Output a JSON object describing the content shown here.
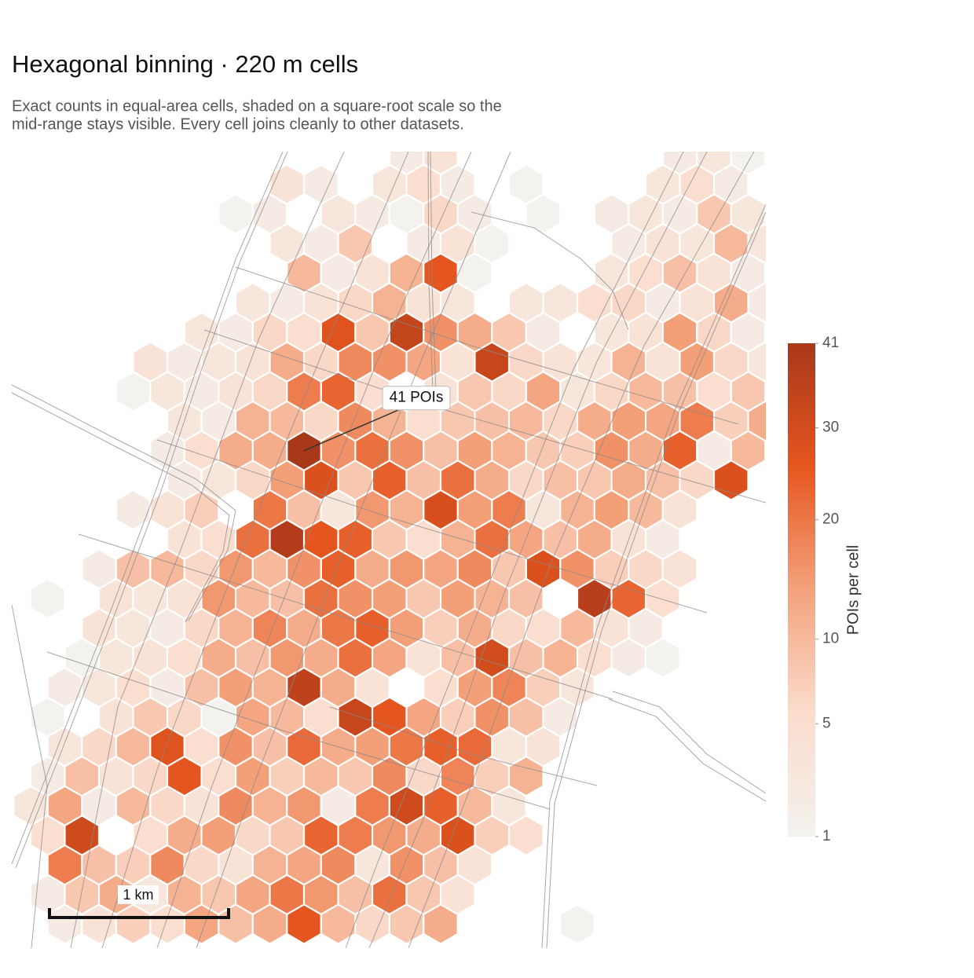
{
  "chart_data": {
    "type": "hexbin",
    "title": "Hexagonal binning · 220 m cells",
    "subtitle_lines": [
      "Exact counts in equal-area cells, shaded on a square-root scale so the",
      "mid-range stays visible. Every cell joins cleanly to other datasets."
    ],
    "annotation": {
      "text": "41 POIs",
      "row": 10,
      "col": 8
    },
    "scale_bar": "1 km",
    "colorscale": [
      "#f3f2ee",
      "#fbdccd",
      "#f3a27c",
      "#e6561f",
      "#a8381a"
    ],
    "colorbar": {
      "label": "POIs per cell",
      "scale": "sqrt",
      "range": [
        1,
        41
      ],
      "ticks": [
        1,
        5,
        10,
        20,
        30,
        41
      ]
    },
    "grid": [
      [
        null,
        null,
        null,
        null,
        null,
        null,
        null,
        null,
        null,
        null,
        null,
        2,
        4,
        null,
        null,
        null,
        null,
        null,
        null,
        2,
        3,
        1
      ],
      [
        null,
        null,
        null,
        null,
        null,
        null,
        null,
        4,
        2,
        null,
        3,
        5,
        2,
        null,
        1,
        null,
        null,
        null,
        3,
        5,
        2,
        null
      ],
      [
        null,
        null,
        null,
        null,
        null,
        null,
        1,
        2,
        null,
        3,
        2,
        1,
        6,
        2,
        null,
        1,
        null,
        2,
        3,
        2,
        8,
        3
      ],
      [
        null,
        null,
        null,
        null,
        null,
        null,
        null,
        3,
        2,
        8,
        null,
        2,
        4,
        1,
        null,
        null,
        null,
        2,
        4,
        3,
        10,
        3
      ],
      [
        null,
        null,
        null,
        null,
        null,
        null,
        null,
        null,
        10,
        2,
        4,
        11,
        26,
        1,
        null,
        null,
        null,
        3,
        5,
        9,
        4,
        2
      ],
      [
        null,
        null,
        null,
        null,
        null,
        null,
        3,
        2,
        4,
        6,
        11,
        4,
        3,
        null,
        3,
        3,
        5,
        6,
        2,
        4,
        12,
        2
      ],
      [
        null,
        null,
        null,
        null,
        null,
        3,
        2,
        6,
        5,
        27,
        8,
        34,
        16,
        12,
        8,
        2,
        null,
        3,
        4,
        14,
        6,
        2
      ],
      [
        null,
        null,
        null,
        4,
        2,
        3,
        4,
        12,
        6,
        17,
        16,
        13,
        4,
        33,
        6,
        4,
        3,
        11,
        4,
        14,
        6,
        3
      ],
      [
        null,
        null,
        null,
        1,
        3,
        2,
        4,
        6,
        19,
        23,
        5,
        null,
        4,
        8,
        6,
        13,
        3,
        6,
        10,
        9,
        5,
        8
      ],
      [
        null,
        null,
        null,
        null,
        3,
        2,
        11,
        10,
        6,
        17,
        11,
        5,
        8,
        9,
        10,
        6,
        12,
        14,
        13,
        19,
        7,
        12
      ],
      [
        null,
        null,
        null,
        null,
        2,
        5,
        12,
        12,
        41,
        16,
        21,
        16,
        9,
        14,
        11,
        8,
        7,
        16,
        12,
        24,
        2,
        10
      ],
      [
        null,
        null,
        null,
        null,
        2,
        3,
        6,
        14,
        28,
        8,
        24,
        9,
        21,
        12,
        6,
        9,
        8,
        12,
        9,
        6,
        28,
        null
      ],
      [
        null,
        null,
        null,
        2,
        4,
        7,
        null,
        20,
        9,
        3,
        15,
        11,
        29,
        14,
        19,
        3,
        11,
        14,
        10,
        4,
        null,
        null
      ],
      [
        null,
        null,
        null,
        null,
        4,
        5,
        21,
        38,
        26,
        24,
        8,
        5,
        11,
        21,
        13,
        9,
        12,
        4,
        2,
        null,
        null,
        null
      ],
      [
        null,
        null,
        2,
        9,
        10,
        6,
        15,
        10,
        16,
        24,
        12,
        15,
        13,
        17,
        8,
        28,
        16,
        7,
        6,
        4,
        null,
        null
      ],
      [
        1,
        null,
        4,
        3,
        4,
        15,
        10,
        9,
        21,
        16,
        14,
        8,
        14,
        11,
        9,
        null,
        37,
        23,
        5,
        null,
        null,
        null
      ],
      [
        null,
        null,
        4,
        3,
        2,
        6,
        11,
        18,
        12,
        20,
        24,
        14,
        7,
        12,
        6,
        5,
        10,
        4,
        2,
        null,
        null,
        null
      ],
      [
        null,
        1,
        3,
        4,
        5,
        12,
        9,
        15,
        12,
        21,
        13,
        4,
        9,
        30,
        9,
        11,
        5,
        2,
        1,
        null,
        null,
        null
      ],
      [
        null,
        2,
        3,
        5,
        2,
        9,
        14,
        11,
        35,
        12,
        4,
        null,
        5,
        14,
        18,
        7,
        3,
        null,
        null,
        null,
        null,
        null
      ],
      [
        1,
        null,
        4,
        8,
        6,
        1,
        13,
        10,
        5,
        33,
        26,
        13,
        7,
        16,
        9,
        2,
        null,
        null,
        null,
        null,
        null,
        null
      ],
      [
        null,
        3,
        6,
        10,
        27,
        5,
        16,
        9,
        22,
        12,
        14,
        20,
        24,
        22,
        3,
        4,
        null,
        null,
        null,
        null,
        null,
        null
      ],
      [
        2,
        9,
        4,
        6,
        26,
        5,
        14,
        7,
        10,
        8,
        17,
        6,
        18,
        7,
        11,
        null,
        null,
        null,
        null,
        null,
        null,
        null
      ],
      [
        3,
        13,
        2,
        10,
        6,
        4,
        17,
        11,
        15,
        2,
        19,
        31,
        24,
        10,
        3,
        null,
        null,
        null,
        null,
        null,
        null,
        null
      ],
      [
        5,
        31,
        null,
        5,
        12,
        14,
        6,
        8,
        23,
        19,
        15,
        12,
        28,
        7,
        5,
        null,
        null,
        null,
        null,
        null,
        null,
        null
      ],
      [
        null,
        19,
        9,
        7,
        17,
        6,
        4,
        11,
        13,
        17,
        3,
        16,
        9,
        4,
        null,
        null,
        null,
        null,
        null,
        null,
        null,
        null
      ],
      [
        2,
        8,
        12,
        3,
        11,
        8,
        13,
        20,
        15,
        9,
        21,
        8,
        4,
        null,
        null,
        null,
        null,
        null,
        null,
        null,
        null,
        null
      ],
      [
        null,
        2,
        4,
        7,
        5,
        13,
        9,
        12,
        26,
        10,
        6,
        8,
        12,
        null,
        null,
        null,
        1,
        null,
        null,
        null,
        null,
        null
      ]
    ]
  }
}
